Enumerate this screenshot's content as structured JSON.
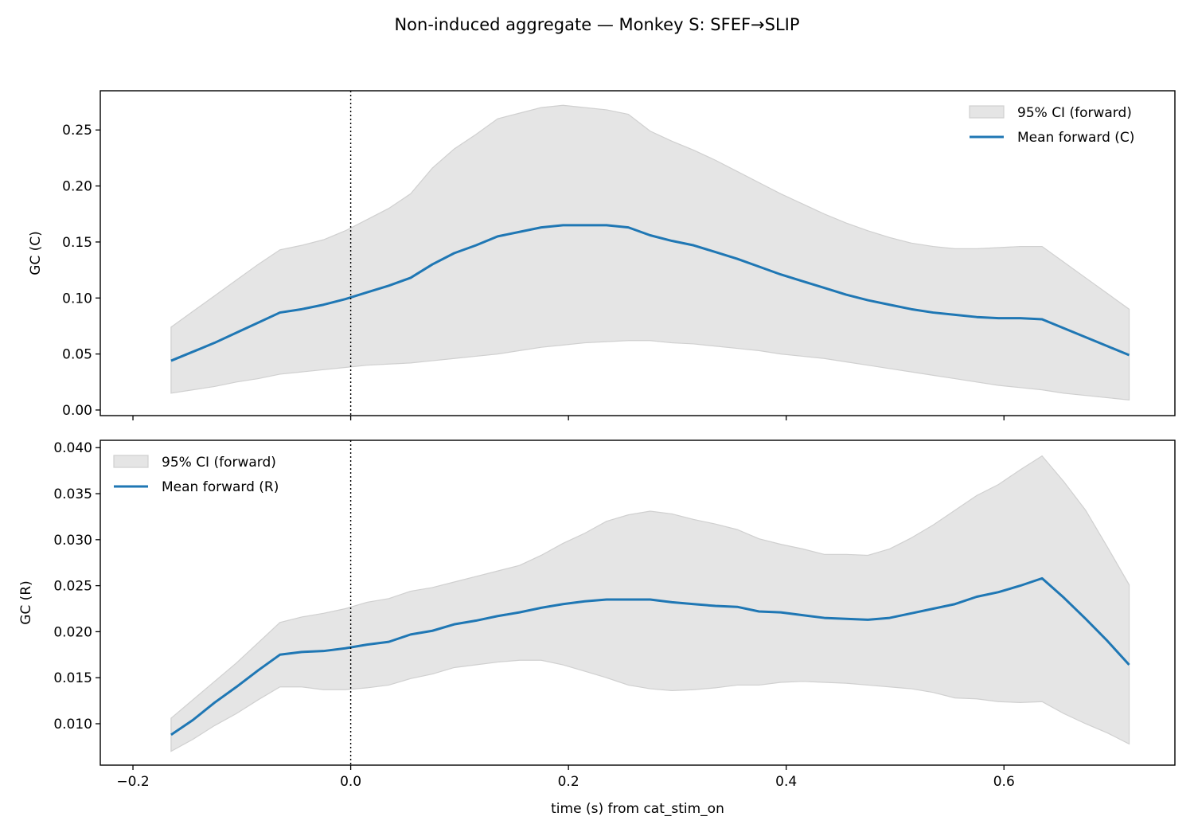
{
  "figure_title": "Non-induced aggregate — Monkey S: SFEF→SLIP",
  "chart_data": [
    {
      "type": "line",
      "panel": "top",
      "ylabel": "GC (C)",
      "xlabel": "",
      "xlim": [
        -0.23,
        0.757
      ],
      "ylim": [
        -0.005,
        0.285
      ],
      "xticks": [
        -0.2,
        0.0,
        0.2,
        0.4,
        0.6
      ],
      "xticklabels_visible": false,
      "yticks": [
        0.0,
        0.05,
        0.1,
        0.15,
        0.2,
        0.25
      ],
      "yticklabels": [
        "0.00",
        "0.05",
        "0.10",
        "0.15",
        "0.20",
        "0.25"
      ],
      "vline_x": 0.0,
      "grid": false,
      "legend_position": "upper right",
      "x": [
        -0.165,
        -0.145,
        -0.125,
        -0.105,
        -0.085,
        -0.065,
        -0.045,
        -0.025,
        -0.005,
        0.015,
        0.035,
        0.055,
        0.075,
        0.095,
        0.115,
        0.135,
        0.155,
        0.175,
        0.195,
        0.215,
        0.235,
        0.255,
        0.275,
        0.295,
        0.315,
        0.335,
        0.355,
        0.375,
        0.395,
        0.415,
        0.435,
        0.455,
        0.475,
        0.495,
        0.515,
        0.535,
        0.555,
        0.575,
        0.595,
        0.615,
        0.635,
        0.655,
        0.675,
        0.695,
        0.715
      ],
      "series": [
        {
          "name": "Mean forward (C)",
          "color": "#1f77b4",
          "values": [
            0.044,
            0.052,
            0.06,
            0.069,
            0.078,
            0.087,
            0.09,
            0.094,
            0.099,
            0.105,
            0.111,
            0.118,
            0.13,
            0.14,
            0.147,
            0.155,
            0.159,
            0.163,
            0.165,
            0.165,
            0.165,
            0.163,
            0.156,
            0.151,
            0.147,
            0.141,
            0.135,
            0.128,
            0.121,
            0.115,
            0.109,
            0.103,
            0.098,
            0.094,
            0.09,
            0.087,
            0.085,
            0.083,
            0.082,
            0.082,
            0.081,
            0.073,
            0.065,
            0.057,
            0.049
          ]
        }
      ],
      "ci": {
        "name": "95% CI (forward)",
        "color": "#e5e5e5",
        "edge_color": "#d0d0d0",
        "upper": [
          0.074,
          0.088,
          0.102,
          0.116,
          0.13,
          0.143,
          0.147,
          0.152,
          0.16,
          0.17,
          0.18,
          0.193,
          0.216,
          0.233,
          0.246,
          0.26,
          0.265,
          0.27,
          0.272,
          0.27,
          0.268,
          0.264,
          0.249,
          0.24,
          0.232,
          0.223,
          0.213,
          0.203,
          0.193,
          0.184,
          0.175,
          0.167,
          0.16,
          0.154,
          0.149,
          0.146,
          0.144,
          0.144,
          0.145,
          0.146,
          0.146,
          0.132,
          0.118,
          0.104,
          0.09
        ],
        "lower": [
          0.015,
          0.018,
          0.021,
          0.025,
          0.028,
          0.032,
          0.034,
          0.036,
          0.038,
          0.04,
          0.041,
          0.042,
          0.044,
          0.046,
          0.048,
          0.05,
          0.053,
          0.056,
          0.058,
          0.06,
          0.061,
          0.062,
          0.062,
          0.06,
          0.059,
          0.057,
          0.055,
          0.053,
          0.05,
          0.048,
          0.046,
          0.043,
          0.04,
          0.037,
          0.034,
          0.031,
          0.028,
          0.025,
          0.022,
          0.02,
          0.018,
          0.015,
          0.013,
          0.011,
          0.009
        ]
      }
    },
    {
      "type": "line",
      "panel": "bottom",
      "ylabel": "GC (R)",
      "xlabel": "time (s) from cat_stim_on",
      "xlim": [
        -0.23,
        0.757
      ],
      "ylim": [
        0.0055,
        0.0408
      ],
      "xticks": [
        -0.2,
        0.0,
        0.2,
        0.4,
        0.6
      ],
      "xticklabels": [
        "−0.2",
        "0.0",
        "0.2",
        "0.4",
        "0.6"
      ],
      "xticklabels_visible": true,
      "yticks": [
        0.01,
        0.015,
        0.02,
        0.025,
        0.03,
        0.035,
        0.04
      ],
      "yticklabels": [
        "0.010",
        "0.015",
        "0.020",
        "0.025",
        "0.030",
        "0.035",
        "0.040"
      ],
      "vline_x": 0.0,
      "grid": false,
      "legend_position": "upper left",
      "x": [
        -0.165,
        -0.145,
        -0.125,
        -0.105,
        -0.085,
        -0.065,
        -0.045,
        -0.025,
        -0.005,
        0.015,
        0.035,
        0.055,
        0.075,
        0.095,
        0.115,
        0.135,
        0.155,
        0.175,
        0.195,
        0.215,
        0.235,
        0.255,
        0.275,
        0.295,
        0.315,
        0.335,
        0.355,
        0.375,
        0.395,
        0.415,
        0.435,
        0.455,
        0.475,
        0.495,
        0.515,
        0.535,
        0.555,
        0.575,
        0.595,
        0.615,
        0.635,
        0.655,
        0.675,
        0.695,
        0.715
      ],
      "series": [
        {
          "name": "Mean forward (R)",
          "color": "#1f77b4",
          "values": [
            0.0088,
            0.0104,
            0.0123,
            0.014,
            0.0158,
            0.0175,
            0.0178,
            0.0179,
            0.0182,
            0.0186,
            0.0189,
            0.0197,
            0.0201,
            0.0208,
            0.0212,
            0.0217,
            0.0221,
            0.0226,
            0.023,
            0.0233,
            0.0235,
            0.0235,
            0.0235,
            0.0232,
            0.023,
            0.0228,
            0.0227,
            0.0222,
            0.0221,
            0.0218,
            0.0215,
            0.0214,
            0.0213,
            0.0215,
            0.022,
            0.0225,
            0.023,
            0.0238,
            0.0243,
            0.025,
            0.0258,
            0.0237,
            0.0214,
            0.019,
            0.0164
          ]
        }
      ],
      "ci": {
        "name": "95% CI (forward)",
        "color": "#e5e5e5",
        "edge_color": "#d0d0d0",
        "upper": [
          0.0106,
          0.0126,
          0.0146,
          0.0166,
          0.0188,
          0.021,
          0.0216,
          0.022,
          0.0225,
          0.0232,
          0.0236,
          0.0244,
          0.0248,
          0.0254,
          0.026,
          0.0266,
          0.0272,
          0.0283,
          0.0296,
          0.0307,
          0.032,
          0.0327,
          0.0331,
          0.0328,
          0.0322,
          0.0317,
          0.0311,
          0.0301,
          0.0295,
          0.029,
          0.0284,
          0.0284,
          0.0283,
          0.029,
          0.0302,
          0.0316,
          0.0332,
          0.0348,
          0.036,
          0.0376,
          0.0391,
          0.0363,
          0.0332,
          0.0292,
          0.0251
        ],
        "lower": [
          0.007,
          0.0083,
          0.0098,
          0.0111,
          0.0126,
          0.014,
          0.014,
          0.0137,
          0.0137,
          0.0139,
          0.0142,
          0.0149,
          0.0154,
          0.0161,
          0.0164,
          0.0167,
          0.0169,
          0.0169,
          0.0164,
          0.0157,
          0.015,
          0.0142,
          0.0138,
          0.0136,
          0.0137,
          0.0139,
          0.0142,
          0.0142,
          0.0145,
          0.0146,
          0.0145,
          0.0144,
          0.0142,
          0.014,
          0.0138,
          0.0134,
          0.0128,
          0.0127,
          0.0124,
          0.0123,
          0.0124,
          0.0111,
          0.01,
          0.009,
          0.0078
        ]
      }
    }
  ]
}
